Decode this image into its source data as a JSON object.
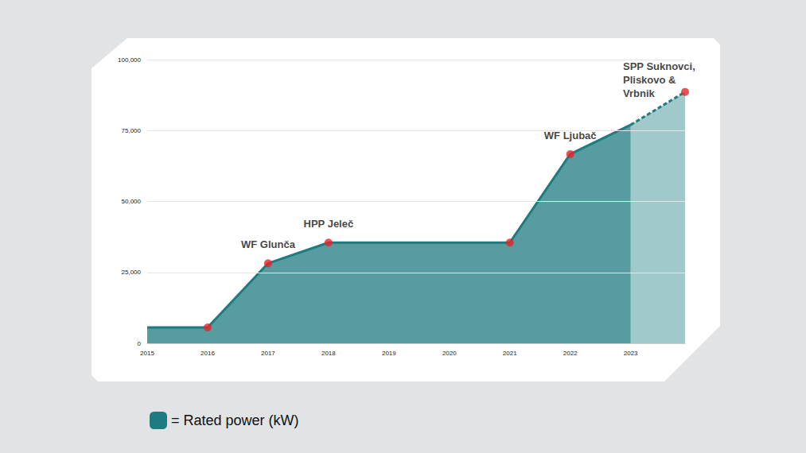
{
  "chart_data": {
    "type": "area",
    "x": [
      2015,
      2016,
      2017,
      2018,
      2019,
      2020,
      2021,
      2022,
      2023,
      2023.9
    ],
    "series": [
      {
        "name": "= Rated power (kW)",
        "color": "#1e7b80",
        "line_style": "solid",
        "values": [
          5600,
          5600,
          28200,
          35500,
          35500,
          35500,
          35500,
          66700,
          77000,
          null
        ]
      },
      {
        "color": "#1e7b80",
        "line_style": "dashed",
        "values": [
          null,
          null,
          null,
          null,
          null,
          null,
          null,
          null,
          77000,
          88600
        ]
      },
      {
        "type": "scatter",
        "marker": "circle",
        "color": "#e3262b",
        "x": [
          2016,
          2017,
          2018,
          2021,
          2022,
          2023.9
        ],
        "values": [
          5600,
          28200,
          35500,
          35500,
          66700,
          88600
        ],
        "point_labels": [
          null,
          "WF Glunča",
          "HPP Jeleč",
          null,
          "WF Ljubač",
          "SPP Suknovci,\nPliskovo &\nVrbnik"
        ]
      }
    ],
    "xlim": [
      2015,
      2023.9
    ],
    "xticks": [
      2015,
      2016,
      2017,
      2018,
      2019,
      2020,
      2021,
      2022,
      2023
    ],
    "ylim": [
      0,
      100000
    ],
    "yticks": [
      0,
      {
        "value": 25000,
        "label": "25,000"
      },
      {
        "value": 50000,
        "label": "50,000"
      },
      {
        "value": 75000,
        "label": "75,000"
      },
      {
        "value": 100000,
        "label": "100,000"
      }
    ],
    "grid": true,
    "legend": "lower left"
  }
}
